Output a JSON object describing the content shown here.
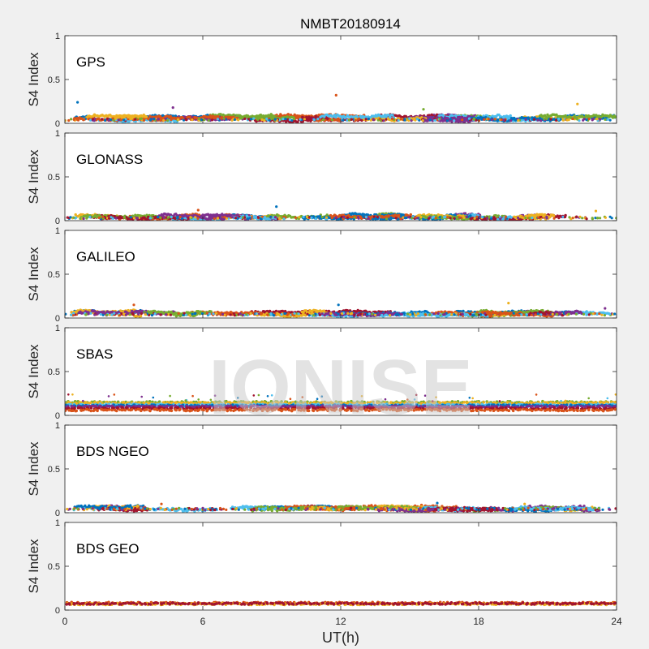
{
  "figure": {
    "title": "NMBT20180914",
    "watermark": "IONISE",
    "xlabel": "UT(h)",
    "ylabel": "S4 Index",
    "background_color": "#f0f0f0",
    "axes_color": "#ffffff"
  },
  "chart_data": [
    {
      "type": "scatter",
      "panel_label": "GPS",
      "ylabel": "S4 Index",
      "xlim": [
        0,
        24
      ],
      "ylim": [
        0,
        1
      ],
      "yticks": [
        0,
        0.5,
        1
      ],
      "ytick_labels": [
        "0",
        "0.5",
        "1"
      ],
      "xticks": [
        0,
        6,
        12,
        18,
        24
      ],
      "xtick_labels": [],
      "grid": false,
      "series_colors": [
        "#0072BD",
        "#D95319",
        "#EDB120",
        "#7E2F8E",
        "#77AC30",
        "#4DBEEE",
        "#A2142F"
      ],
      "typical_range": [
        0.03,
        0.12
      ],
      "outliers": [
        {
          "x": 0.55,
          "y": 0.24
        },
        {
          "x": 11.8,
          "y": 0.32
        },
        {
          "x": 22.3,
          "y": 0.22
        },
        {
          "x": 4.7,
          "y": 0.18
        },
        {
          "x": 15.6,
          "y": 0.16
        }
      ]
    },
    {
      "type": "scatter",
      "panel_label": "GLONASS",
      "ylabel": "S4 Index",
      "xlim": [
        0,
        24
      ],
      "ylim": [
        0,
        1
      ],
      "yticks": [
        0,
        0.5,
        1
      ],
      "ytick_labels": [
        "0",
        "0.5",
        "1"
      ],
      "xticks": [
        0,
        6,
        12,
        18,
        24
      ],
      "xtick_labels": [],
      "grid": false,
      "series_colors": [
        "#0072BD",
        "#D95319",
        "#EDB120",
        "#7E2F8E",
        "#77AC30",
        "#4DBEEE",
        "#A2142F"
      ],
      "typical_range": [
        0.02,
        0.09
      ],
      "outliers": [
        {
          "x": 9.2,
          "y": 0.16
        },
        {
          "x": 5.8,
          "y": 0.12
        },
        {
          "x": 23.1,
          "y": 0.11
        }
      ]
    },
    {
      "type": "scatter",
      "panel_label": "GALILEO",
      "ylabel": "S4 Index",
      "xlim": [
        0,
        24
      ],
      "ylim": [
        0,
        1
      ],
      "yticks": [
        0,
        0.5,
        1
      ],
      "ytick_labels": [
        "0",
        "0.5",
        "1"
      ],
      "xticks": [
        0,
        6,
        12,
        18,
        24
      ],
      "xtick_labels": [],
      "grid": false,
      "series_colors": [
        "#0072BD",
        "#D95319",
        "#EDB120",
        "#7E2F8E",
        "#77AC30",
        "#4DBEEE",
        "#A2142F"
      ],
      "typical_range": [
        0.03,
        0.1
      ],
      "outliers": [
        {
          "x": 11.9,
          "y": 0.15
        },
        {
          "x": 3.0,
          "y": 0.15
        },
        {
          "x": 19.3,
          "y": 0.17
        },
        {
          "x": 23.5,
          "y": 0.11
        }
      ]
    },
    {
      "type": "scatter",
      "panel_label": "SBAS",
      "ylabel": "S4 Index",
      "xlim": [
        0,
        24
      ],
      "ylim": [
        0,
        1
      ],
      "yticks": [
        0,
        0.5,
        1
      ],
      "ytick_labels": [
        "0",
        "0.5",
        "1"
      ],
      "xticks": [
        0,
        6,
        12,
        18,
        24
      ],
      "xtick_labels": [],
      "grid": false,
      "series_colors": [
        "#0072BD",
        "#D95319",
        "#EDB120",
        "#7E2F8E",
        "#77AC30",
        "#4DBEEE",
        "#A2142F"
      ],
      "bands": [
        {
          "color": "#77AC30",
          "y": 0.15
        },
        {
          "color": "#EDB120",
          "y": 0.14
        },
        {
          "color": "#4DBEEE",
          "y": 0.12
        },
        {
          "color": "#0072BD",
          "y": 0.11
        },
        {
          "color": "#7E2F8E",
          "y": 0.1
        },
        {
          "color": "#A2142F",
          "y": 0.08
        },
        {
          "color": "#D95319",
          "y": 0.06
        }
      ]
    },
    {
      "type": "scatter",
      "panel_label": "BDS NGEO",
      "ylabel": "S4 Index",
      "xlim": [
        0,
        24
      ],
      "ylim": [
        0,
        1
      ],
      "yticks": [
        0,
        0.5,
        1
      ],
      "ytick_labels": [
        "0",
        "0.5",
        "1"
      ],
      "xticks": [
        0,
        6,
        12,
        18,
        24
      ],
      "xtick_labels": [],
      "grid": false,
      "series_colors": [
        "#0072BD",
        "#D95319",
        "#EDB120",
        "#7E2F8E",
        "#77AC30",
        "#4DBEEE",
        "#A2142F"
      ],
      "typical_range": [
        0.03,
        0.09
      ],
      "outliers": [
        {
          "x": 16.2,
          "y": 0.11
        },
        {
          "x": 4.2,
          "y": 0.1
        },
        {
          "x": 20.0,
          "y": 0.1
        }
      ]
    },
    {
      "type": "scatter",
      "panel_label": "BDS GEO",
      "ylabel": "S4 Index",
      "xlim": [
        0,
        24
      ],
      "ylim": [
        0,
        1
      ],
      "yticks": [
        0,
        0.5,
        1
      ],
      "ytick_labels": [
        "0",
        "0.5",
        "1"
      ],
      "xticks": [
        0,
        6,
        12,
        18,
        24
      ],
      "xtick_labels": [
        "0",
        "6",
        "12",
        "18",
        "24"
      ],
      "grid": false,
      "series_colors": [
        "#D95319",
        "#EDB120",
        "#A2142F"
      ],
      "bands": [
        {
          "color": "#D95319",
          "y": 0.08
        },
        {
          "color": "#EDB120",
          "y": 0.07
        },
        {
          "color": "#A2142F",
          "y": 0.075
        }
      ]
    }
  ]
}
